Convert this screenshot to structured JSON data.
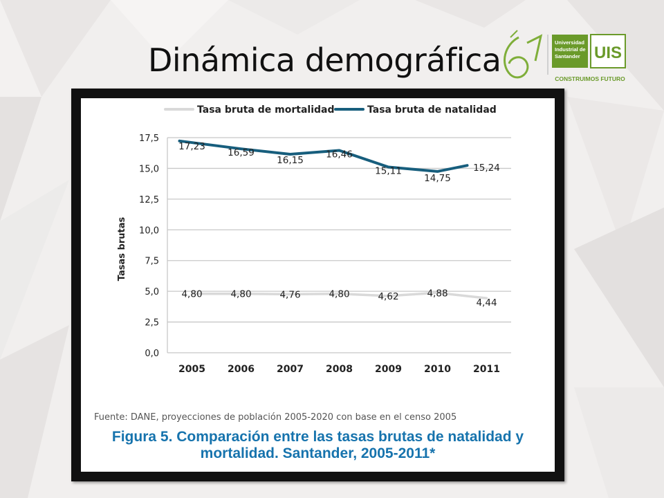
{
  "slide": {
    "title": "Dinámica demográfica"
  },
  "logo": {
    "text_line1": "Universidad",
    "text_line2": "Industrial de",
    "text_line3": "Santander",
    "monogram": "UIS",
    "tagline": "CONSTRUIMOS FUTURO",
    "brand_color": "#6a9a2a"
  },
  "figure": {
    "source": "Fuente: DANE, proyecciones de población 2005-2020 con base en el censo 2005",
    "caption_line1": "Figura 5. Comparación entre las tasas brutas de natalidad y",
    "caption_line2": "mortalidad. Santander, 2005-2011*"
  },
  "chart_data": {
    "type": "line",
    "title": "",
    "xlabel": "",
    "ylabel": "Tasas brutas",
    "categories": [
      "2005",
      "2006",
      "2007",
      "2008",
      "2009",
      "2010",
      "2011"
    ],
    "ylim": [
      0,
      17.5
    ],
    "yticks": [
      "0,0",
      "2,5",
      "5,0",
      "7,5",
      "10,0",
      "12,5",
      "15,0",
      "17,5"
    ],
    "ytick_values": [
      0,
      2.5,
      5,
      7.5,
      10,
      12.5,
      15,
      17.5
    ],
    "grid": true,
    "legend_position": "top",
    "series": [
      {
        "name": "Tasa bruta de mortalidad",
        "color": "#d9d9d9",
        "values": [
          4.8,
          4.8,
          4.76,
          4.8,
          4.62,
          4.88,
          4.44
        ],
        "labels": [
          "4,80",
          "4,80",
          "4,76",
          "4,80",
          "4,62",
          "4,88",
          "4,44"
        ]
      },
      {
        "name": "Tasa bruta de natalidad",
        "color": "#175e7d",
        "values": [
          17.23,
          16.59,
          16.15,
          16.46,
          15.11,
          14.75,
          15.24
        ],
        "labels": [
          "17,23",
          "16,59",
          "16,15",
          "16,46",
          "15,11",
          "14,75",
          "15,24"
        ]
      }
    ]
  }
}
